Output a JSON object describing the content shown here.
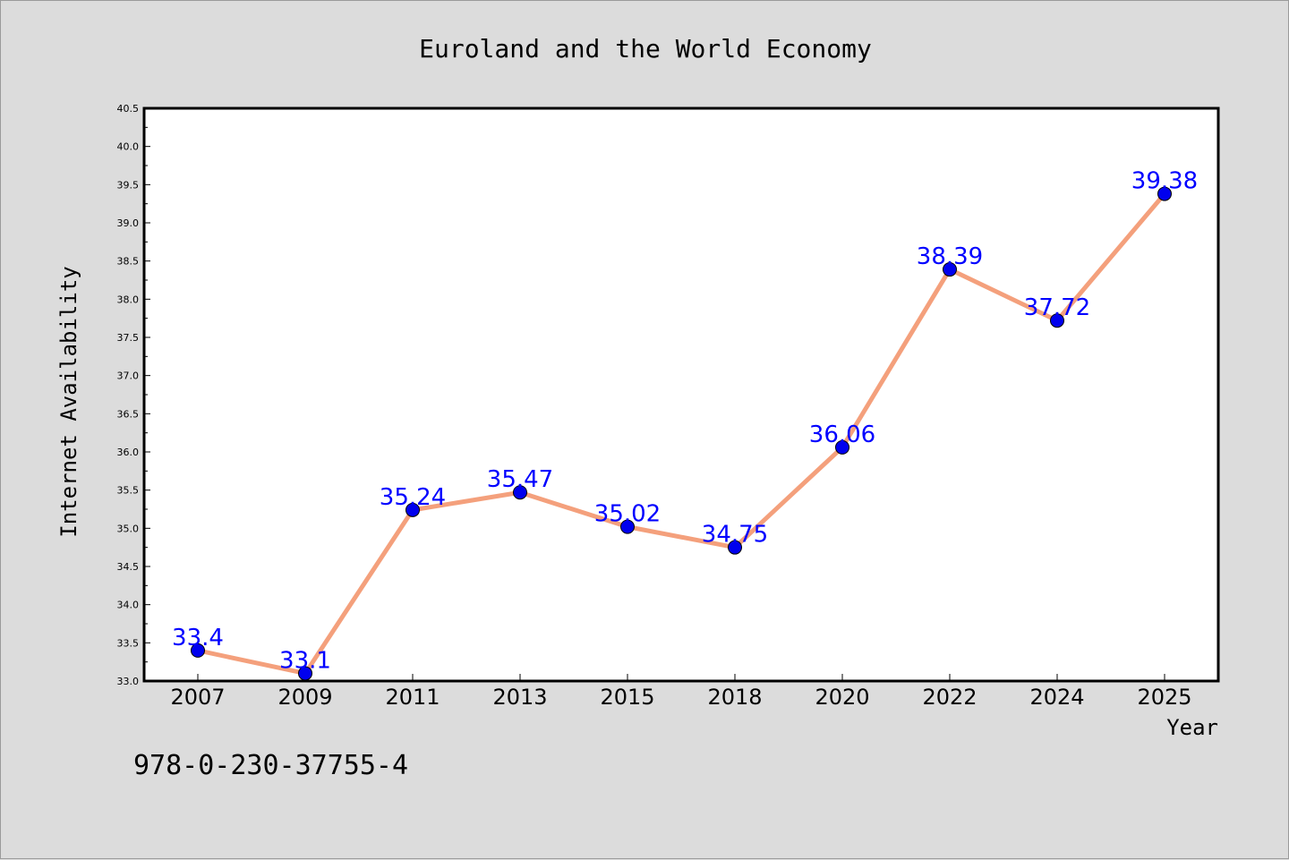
{
  "chart_data": {
    "type": "line",
    "title": "Euroland and the World Economy",
    "xlabel": "Year",
    "ylabel": "Internet Availability",
    "categories": [
      "2007",
      "2009",
      "2011",
      "2013",
      "2015",
      "2018",
      "2020",
      "2022",
      "2024",
      "2025"
    ],
    "series": [
      {
        "values": [
          33.4,
          33.1,
          35.24,
          35.47,
          35.02,
          34.75,
          36.06,
          38.39,
          37.72,
          39.38
        ],
        "data_labels": [
          "33.4",
          "33.1",
          "35.24",
          "35.47",
          "35.02",
          "34.75",
          "36.06",
          "38.39",
          "37.72",
          "39.38"
        ],
        "line_color": "#f4a07c",
        "marker_color": "#0000ee",
        "label_color": "#0000ff"
      }
    ],
    "ylim": [
      33.0,
      40.5
    ],
    "yticks": [
      "33.0",
      "33.5",
      "34.0",
      "34.5",
      "35.0",
      "35.5",
      "36.0",
      "36.5",
      "37.0",
      "37.5",
      "38.0",
      "38.5",
      "39.0",
      "39.5",
      "40.0",
      "40.5"
    ],
    "grid": false,
    "legend": "none"
  },
  "isbn": "978-0-230-37755-4"
}
